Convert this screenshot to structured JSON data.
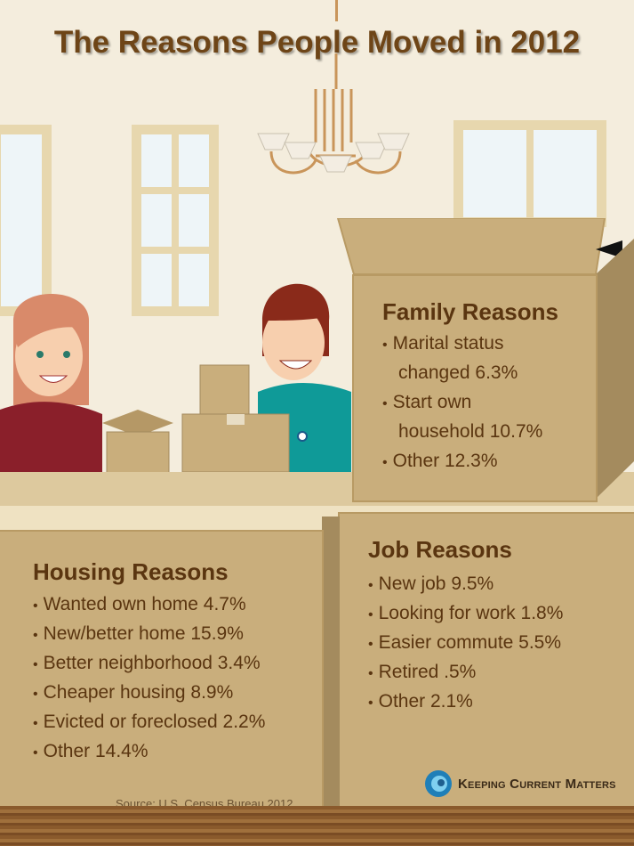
{
  "title": "The Reasons People Moved in 2012",
  "family": {
    "heading": "Family Reasons",
    "items": [
      "Marital status",
      "changed 6.3%",
      "Start own",
      "household 10.7%",
      "Other 12.3%"
    ]
  },
  "housing": {
    "heading": "Housing Reasons",
    "items": [
      "Wanted own home 4.7%",
      "New/better home 15.9%",
      "Better neighborhood 3.4%",
      "Cheaper housing 8.9%",
      "Evicted or foreclosed 2.2%",
      "Other 14.4%"
    ]
  },
  "job": {
    "heading": "Job Reasons",
    "items": [
      "New job 9.5%",
      "Looking for work 1.8%",
      "Easier commute 5.5%",
      "Retired .5%",
      "Other 2.1%"
    ]
  },
  "source": "Source: U.S. Census Bureau 2012",
  "logo": "Keeping Current Matters",
  "colors": {
    "text": "#5a3510",
    "box": "#c9ae7c",
    "title": "#6e4517"
  }
}
